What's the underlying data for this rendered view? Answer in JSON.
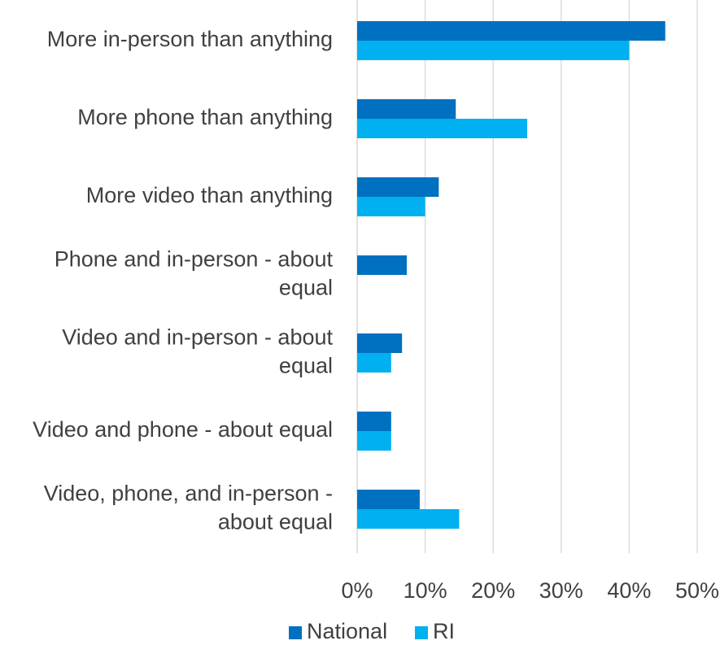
{
  "chart_data": {
    "type": "bar",
    "orientation": "horizontal",
    "categories": [
      [
        "More in-person than anything"
      ],
      [
        "More phone than anything"
      ],
      [
        "More video than anything"
      ],
      [
        "Phone and in-person - about",
        "equal"
      ],
      [
        "Video and in-person - about",
        "equal"
      ],
      [
        "Video and phone - about equal"
      ],
      [
        "Video, phone, and in-person -",
        "about equal"
      ]
    ],
    "series": [
      {
        "name": "National",
        "color": "#0070C0",
        "values": [
          45.3,
          14.5,
          12.0,
          7.3,
          6.6,
          5.0,
          9.2
        ]
      },
      {
        "name": "RI",
        "color": "#00B0F0",
        "values": [
          40.0,
          25.0,
          10.0,
          0,
          5.0,
          5.0,
          15.0
        ]
      }
    ],
    "x_ticks": [
      "0%",
      "10%",
      "20%",
      "30%",
      "40%",
      "50%"
    ],
    "xlim": [
      0,
      50
    ],
    "grid": true,
    "legend_position": "bottom"
  }
}
